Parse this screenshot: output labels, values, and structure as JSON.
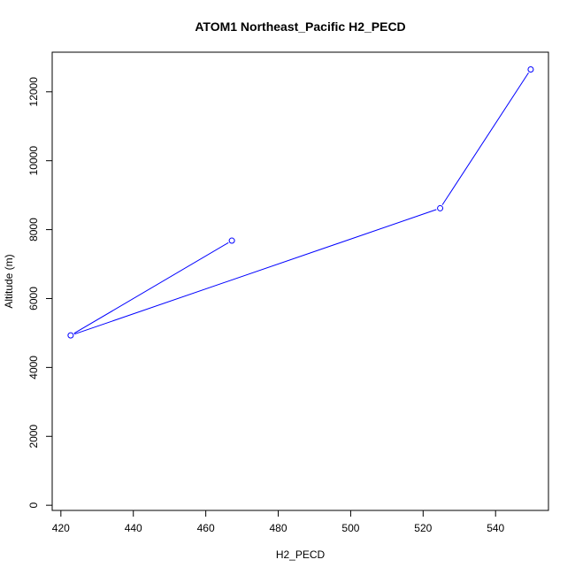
{
  "chart_data": {
    "type": "line",
    "title": "ATOM1 Northeast_Pacific H2_PECD",
    "xlabel": "H2_PECD",
    "ylabel": "Altitude (m)",
    "xlim": [
      417.6,
      554.6
    ],
    "ylim": [
      -150,
      13150
    ],
    "x_ticks": [
      420,
      440,
      460,
      480,
      500,
      520,
      540
    ],
    "y_ticks": [
      0,
      2000,
      4000,
      6000,
      8000,
      10000,
      12000
    ],
    "grid": false,
    "legend": "none",
    "series": [
      {
        "color": "#0000ff",
        "marker": "open-circle",
        "points": [
          {
            "x": 467.2,
            "y": 7680
          },
          {
            "x": 422.7,
            "y": 4930
          },
          {
            "x": 524.7,
            "y": 8620
          },
          {
            "x": 549.7,
            "y": 12650
          }
        ]
      }
    ]
  }
}
